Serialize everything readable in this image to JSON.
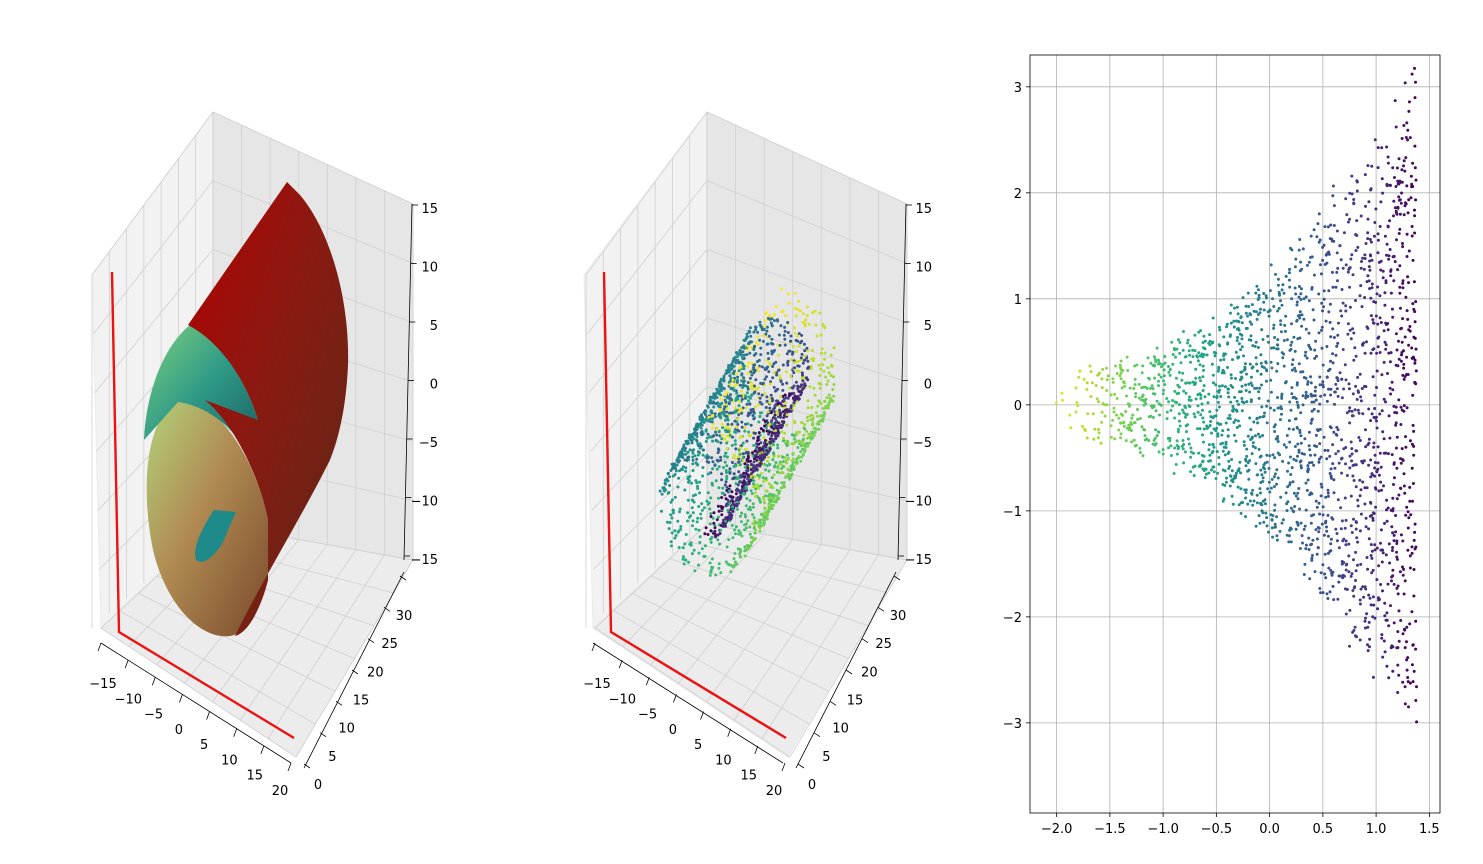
{
  "chart_data": [
    {
      "type": "surface3d",
      "title": "",
      "surface": "swiss-roll",
      "x_ticks": [
        "−15",
        "−10",
        "−5",
        "0",
        "5",
        "10",
        "15",
        "20"
      ],
      "y_ticks": [
        "0",
        "5",
        "10",
        "15",
        "20",
        "25",
        "30"
      ],
      "z_ticks": [
        "15",
        "10",
        "5",
        "0",
        "−5",
        "−10",
        "−15"
      ],
      "xlim": [
        -15,
        20
      ],
      "ylim": [
        0,
        33
      ],
      "zlim": [
        -15,
        15
      ],
      "colormap": "gist_earth-like",
      "axis_lines_color": "#e41a1c"
    },
    {
      "type": "scatter3d",
      "title": "",
      "surface": "swiss-roll samples",
      "x_ticks": [
        "−15",
        "−10",
        "−5",
        "0",
        "5",
        "10",
        "15",
        "20"
      ],
      "y_ticks": [
        "0",
        "5",
        "10",
        "15",
        "20",
        "25",
        "30"
      ],
      "z_ticks": [
        "15",
        "10",
        "5",
        "0",
        "−5",
        "−10",
        "−15"
      ],
      "xlim": [
        -15,
        20
      ],
      "ylim": [
        0,
        33
      ],
      "zlim": [
        -15,
        15
      ],
      "colormap": "viridis",
      "axis_lines_color": "#e41a1c",
      "approx_points": 2000
    },
    {
      "type": "scatter",
      "title": "",
      "xlabel": "",
      "ylabel": "",
      "x_ticks": [
        "−2.0",
        "−1.5",
        "−1.0",
        "−0.5",
        "0.0",
        "0.5",
        "1.0",
        "1.5"
      ],
      "x_tick_values": [
        -2.0,
        -1.5,
        -1.0,
        -0.5,
        0.0,
        0.5,
        1.0,
        1.5
      ],
      "y_ticks": [
        "3",
        "2",
        "1",
        "0",
        "−1",
        "−2",
        "−3"
      ],
      "y_tick_values": [
        3,
        2,
        1,
        0,
        -1,
        -2,
        -3
      ],
      "xlim": [
        -2.25,
        1.6
      ],
      "ylim": [
        -3.85,
        3.3
      ],
      "grid": true,
      "colormap": "viridis",
      "color_by": "x (yellow at left, purple at right)",
      "shape": "funnel: narrow band |y|<0.4 at x=-2.0 widening to |y|<3.5 at x=1.4",
      "approx_points": 2000
    }
  ]
}
